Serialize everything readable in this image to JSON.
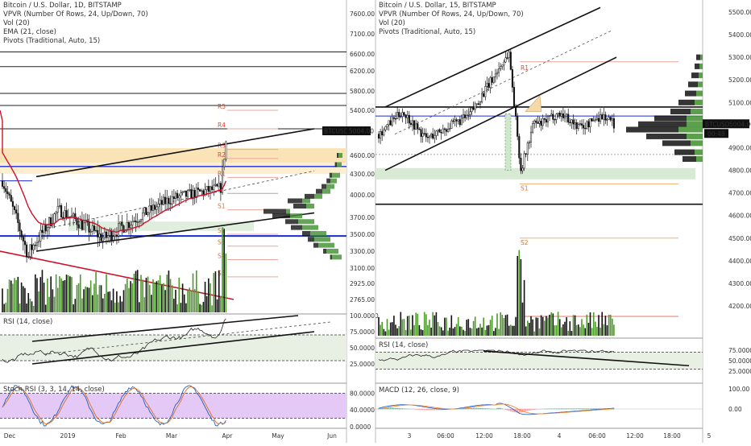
{
  "colors": {
    "up": "#4c9a2a",
    "down": "#111111",
    "ema": "#d0112b",
    "resistance": "#e07b64",
    "support": "#e89030",
    "vpUp": "#3f8f2e",
    "vpDown": "#000000",
    "rsiBand": "#e8efe3",
    "stochBand": "#e4c8f5",
    "blueLine": "#1a2bd6",
    "stochK": "#2060c0",
    "stochD": "#e07020",
    "macdLine": "#2a62d6",
    "signalLine": "#f08a30"
  },
  "left": {
    "legend": [
      "Bitcoin / U.S. Dollar, 1D, BITSTAMP",
      "VPVR (Number Of Rows, 24, Up/Down, 70)",
      "Vol (20)",
      "EMA (21, close)",
      "Pivots (Traditional, Auto, 15)"
    ],
    "price_ticks": [
      "7600.00",
      "7100.00",
      "6600.00",
      "6200.00",
      "5800.00",
      "5400.00",
      "5004.00",
      "4600.00",
      "4300.00",
      "4000.00",
      "3700.00",
      "3500.00",
      "3300.00",
      "3100.00",
      "2925.00",
      "2765.00"
    ],
    "price_values": [
      7600,
      7100,
      6600,
      6200,
      5800,
      5400,
      5004,
      4600,
      4300,
      4000,
      3700,
      3500,
      3300,
      3100,
      2925,
      2765
    ],
    "last_price_label": "BTCUSD",
    "last_price": "5004.00",
    "pivots": [
      "R5",
      "R4",
      "R3",
      "R2",
      "R1",
      "P",
      "S1",
      "S2",
      "S3",
      "S4",
      "S5"
    ],
    "rsi_title": "RSI (14, close)",
    "rsi_ticks": [
      "100.0000",
      "75.0000",
      "50.0000",
      "25.0000"
    ],
    "stoch_title": "Stoch RSI (3, 3, 14, 14, close)",
    "stoch_ticks": [
      "80.0000",
      "40.0000",
      "0.0000"
    ],
    "time_labels": [
      "Dec",
      "2019",
      "Feb",
      "Mar",
      "Apr",
      "May",
      "Jun"
    ]
  },
  "right": {
    "legend": [
      "Bitcoin / U.S. Dollar, 15, BITSTAMP",
      "VPVR (Number Of Rows, 24, Up/Down, 70)",
      "Vol (20)",
      "Pivots (Traditional, Auto, 15)"
    ],
    "price_ticks": [
      "5500.00",
      "5400.00",
      "5300.00",
      "5200.00",
      "5100.00",
      "5004.00",
      "4900.00",
      "4800.00",
      "4700.00",
      "4600.00",
      "4500.00",
      "4400.00",
      "4300.00",
      "4200.00"
    ],
    "price_values": [
      5500,
      5400,
      5300,
      5200,
      5100,
      5004,
      4900,
      4800,
      4700,
      4600,
      4500,
      4400,
      4300,
      4200
    ],
    "last_price_label": "BTCUSD",
    "last_price": "5004.00",
    "countdown": "00:48",
    "pivots": [
      "R1",
      "S1",
      "S2"
    ],
    "rsi_title": "RSI (14, close)",
    "rsi_ticks": [
      "75.0000",
      "50.0000",
      "25.0000"
    ],
    "macd_title": "MACD (12, 26, close, 9)",
    "macd_ticks": [
      "100.00",
      "0.00"
    ],
    "time_labels": [
      "3",
      "06:00",
      "12:00",
      "18:00",
      "4",
      "06:00",
      "12:00",
      "18:00",
      "5"
    ]
  },
  "chart_data": [
    {
      "type": "candlestick",
      "title": "Bitcoin / U.S. Dollar, 1D, BITSTAMP",
      "ylim": [
        2700,
        7800
      ],
      "ylabel": "USD",
      "x": [
        "Dec",
        "2019",
        "Feb",
        "Mar",
        "Apr",
        "May",
        "Jun"
      ],
      "pivot_levels": {
        "R5": 5400,
        "R4": 5050,
        "R3": 4700,
        "R2": 4550,
        "R1": 4250,
        "P": 4020,
        "S1": 3800,
        "S2": 3500,
        "S3": 3360,
        "S4": 3200,
        "S5": 3000
      },
      "ema_21": [
        4300,
        3900,
        3700,
        3650,
        3620,
        3650,
        3700,
        3760,
        3800,
        3860,
        3900,
        3950,
        4100
      ]
    },
    {
      "type": "candlestick",
      "title": "Bitcoin / U.S. Dollar, 15, BITSTAMP",
      "ylim": [
        4150,
        5550
      ],
      "ylabel": "USD",
      "x": [
        "3",
        "06:00",
        "12:00",
        "18:00",
        "4",
        "06:00",
        "12:00",
        "18:00",
        "5"
      ],
      "pivot_levels": {
        "R1": 5280,
        "S1": 4740,
        "S2": 4500
      },
      "series_close_estimate": [
        4950,
        5050,
        4980,
        5020,
        5100,
        5280,
        5150,
        4850,
        5030,
        5010,
        5000,
        4990,
        5004
      ]
    }
  ]
}
